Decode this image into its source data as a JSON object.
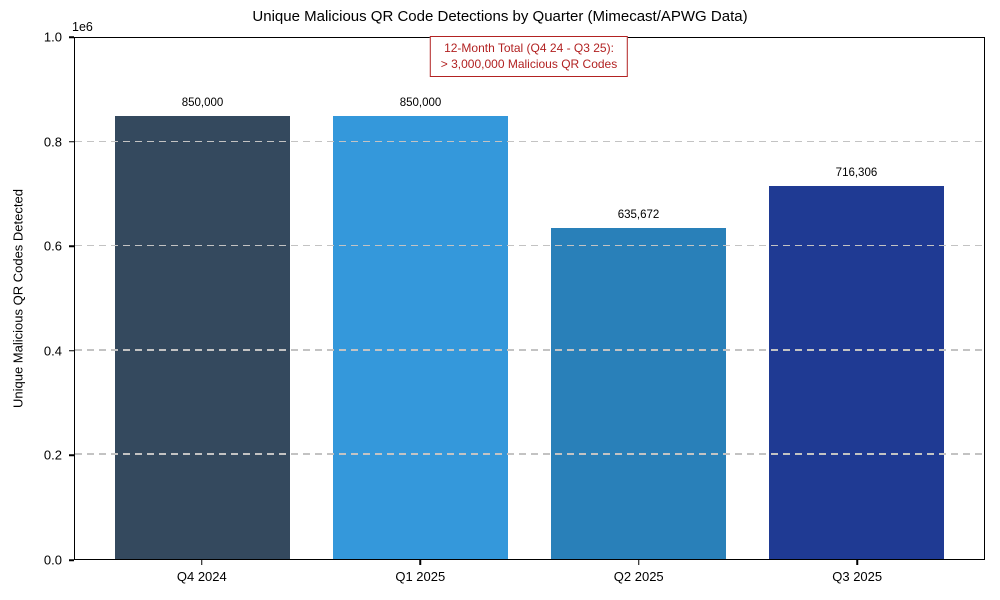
{
  "chart_data": {
    "type": "bar",
    "title": "Unique Malicious QR Code Detections by Quarter (Mimecast/APWG Data)",
    "xlabel": "",
    "ylabel": "Unique Malicious QR Codes Detected",
    "categories": [
      "Q4 2024",
      "Q1 2025",
      "Q2 2025",
      "Q3 2025"
    ],
    "values": [
      850000,
      850000,
      635672,
      716306
    ],
    "value_labels": [
      "850,000",
      "850,000",
      "635,672",
      "716,306"
    ],
    "bar_colors": [
      "#34495e",
      "#3498db",
      "#2980b9",
      "#1f3a93"
    ],
    "ylim": [
      0,
      1000000
    ],
    "yticks": [
      0,
      200000,
      400000,
      600000,
      800000,
      1000000
    ],
    "ytick_labels": [
      "0.0",
      "0.2",
      "0.4",
      "0.6",
      "0.8",
      "1.0"
    ],
    "y_offset_label": "1e6",
    "grid": "horizontal dashed gridlines at 0.2e6 to 0.8e6, drawn over bars",
    "gridline_color": "#c3c3c3",
    "legend": "none",
    "annotation": {
      "lines": [
        "12-Month Total (Q4 24 - Q3 25):",
        "> 3,000,000 Malicious QR Codes"
      ],
      "color": "#b22222",
      "position": "top center, below top spine"
    }
  }
}
